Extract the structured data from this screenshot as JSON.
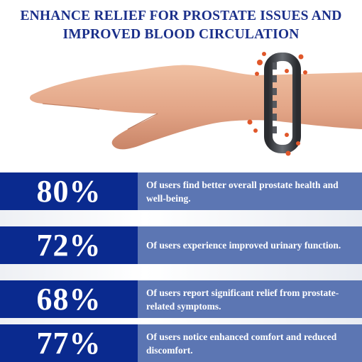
{
  "title": {
    "line1": "ENHANCE RELIEF FOR PROSTATE ISSUES AND",
    "line2": "IMPROVED BLOOD CIRCULATION"
  },
  "stats": [
    {
      "percent": "80%",
      "value": 80,
      "text": "Of users find better overall prostate health and well-being."
    },
    {
      "percent": "72%",
      "value": 72,
      "text": "Of users experience improved urinary function."
    },
    {
      "percent": "68%",
      "value": 68,
      "text": "Of users report significant relief from prostate-related symptoms."
    },
    {
      "percent": "77%",
      "value": 77,
      "text": "Of users notice enhanced comfort and reduced discomfort."
    }
  ],
  "colors": {
    "title": "#1a2f8a",
    "percent_bg": "#0a2a8f",
    "text_bg": "#5c76b3",
    "skin": "#e2a88a",
    "bracelet": "#3a3d42",
    "magnet_beads": "#e0572a"
  }
}
